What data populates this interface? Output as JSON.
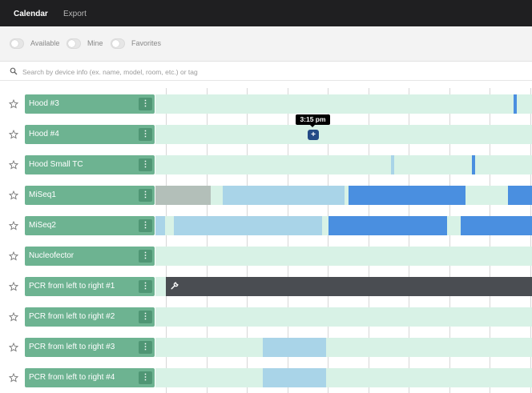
{
  "nav": {
    "tabs": [
      "Calendar",
      "Export"
    ]
  },
  "filters": {
    "toggles": [
      "Available",
      "Mine",
      "Favorites"
    ]
  },
  "search": {
    "placeholder": "Search by device info (ex. name, model, room, etc.) or tag"
  },
  "devices": [
    {
      "name": "Hood #3",
      "menu": "⋮"
    },
    {
      "name": "Hood #4",
      "menu": "⋮"
    },
    {
      "name": "Hood Small TC",
      "menu": "⋮"
    },
    {
      "name": "MiSeq1",
      "menu": "⋮"
    },
    {
      "name": "MiSeq2",
      "menu": "⋮"
    },
    {
      "name": "Nucleofector",
      "menu": "⋮"
    },
    {
      "name": "PCR from left to right #1",
      "menu": "⋮"
    },
    {
      "name": "PCR from left to right #2",
      "menu": "⋮"
    },
    {
      "name": "PCR from left to right #3",
      "menu": "⋮"
    },
    {
      "name": "PCR from left to right #4",
      "menu": "⋮"
    }
  ],
  "tooltip": {
    "time": "3:15 pm"
  },
  "add_button": {
    "glyph": "+"
  },
  "colors": {
    "available": "#d8f2e6",
    "booked_light": "#a9d4e8",
    "booked_dark": "#4a8fe0",
    "past": "#b3bfb9",
    "maintenance": "#4a4d52",
    "label_bg": "#6db391"
  }
}
